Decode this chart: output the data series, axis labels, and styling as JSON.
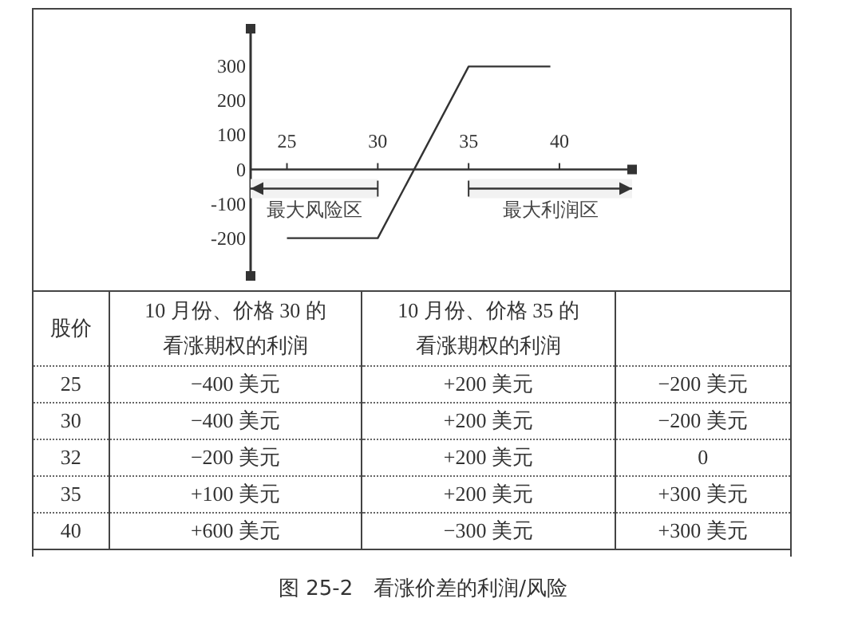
{
  "chart_data": [
    {
      "type": "line",
      "x": [
        25,
        30,
        35,
        39.5
      ],
      "values": [
        -200,
        -200,
        300,
        300
      ],
      "color": "#333333",
      "xlim": [
        23,
        44
      ],
      "ylim": [
        -310,
        410
      ],
      "xticks": [
        25,
        30,
        35,
        40
      ],
      "yticks": [
        -200,
        -100,
        0,
        100,
        200,
        300
      ],
      "marker": "none",
      "line_style": "solid",
      "bands": [
        {
          "axis": "x",
          "from": 23,
          "to": 30,
          "label": "最大风险区",
          "color": "#f2f2f2"
        },
        {
          "axis": "x",
          "from": 35,
          "to": 44,
          "label": "最大利润区",
          "color": "#f2f2f2"
        }
      ]
    },
    {
      "type": "other",
      "categories": [
        "股价",
        "10 月份、价格 30 的看涨期权的利润",
        "10 月份、价格 35 的看涨期权的利润",
        null
      ],
      "cell_labels": [
        [
          "25",
          "−400 美元",
          "+200 美元",
          "−200 美元"
        ],
        [
          "30",
          "−400 美元",
          "+200 美元",
          "−200 美元"
        ],
        [
          "32",
          "−200 美元",
          "+200 美元",
          "0"
        ],
        [
          "35",
          "+100 美元",
          "+200 美元",
          "+300 美元"
        ],
        [
          "40",
          "+600 美元",
          "−300 美元",
          "+300 美元"
        ]
      ],
      "annotations": [
        "图 25-2　看涨价差的利润/风险"
      ]
    }
  ]
}
